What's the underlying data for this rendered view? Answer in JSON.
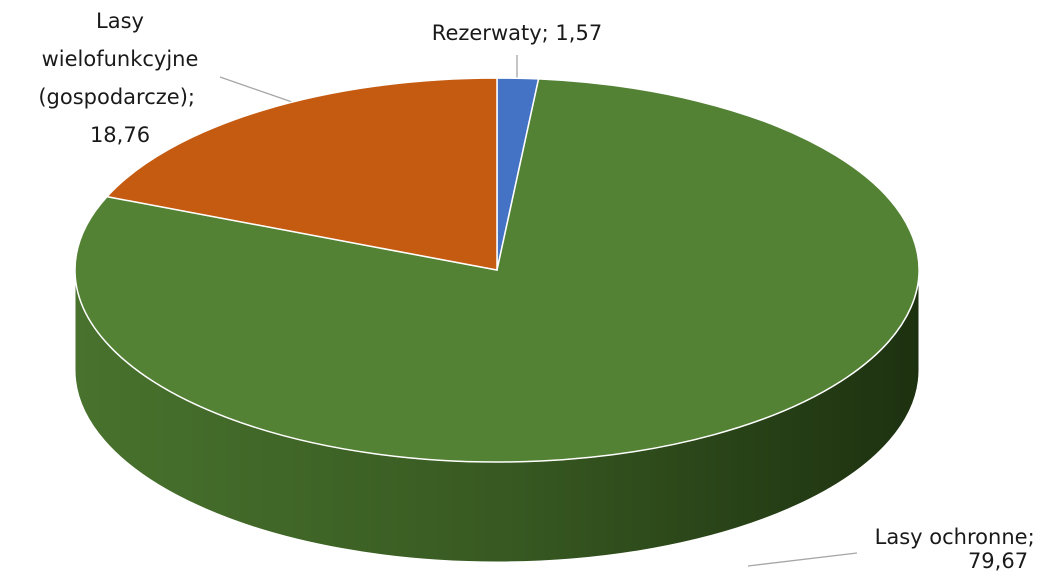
{
  "chart_data": {
    "type": "pie3d",
    "categories": [
      "Rezerwaty",
      "Lasy ochronne",
      "Lasy wielofunkcyjne (gospodarcze)"
    ],
    "values": [
      1.57,
      79.67,
      18.76
    ],
    "value_labels": [
      "1,57",
      "79,67",
      "18,76"
    ],
    "label_separator": "; ",
    "colors": [
      "#4472c4",
      "#548235",
      "#c55a11"
    ]
  }
}
